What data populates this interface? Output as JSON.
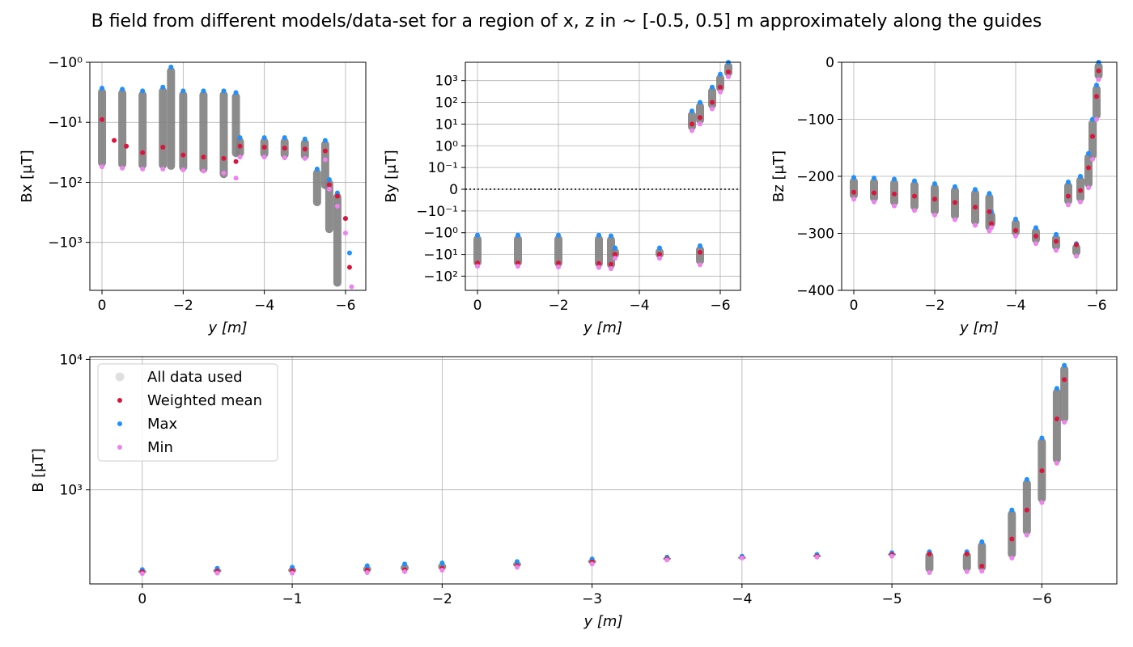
{
  "figure": {
    "suptitle": "B field from different models/data-set for a region of x, z in ~ [-0.5, 0.5] m approximately along the guides"
  },
  "legend": {
    "entries": [
      {
        "label": "All data used",
        "color": "#808080"
      },
      {
        "label": "Weighted mean",
        "color": "#dc143c"
      },
      {
        "label": "Max",
        "color": "#1e90ff"
      },
      {
        "label": "Min",
        "color": "#ee82ee"
      }
    ]
  },
  "colors": {
    "all": "#808080",
    "mean": "#dc143c",
    "max": "#1e90ff",
    "min": "#ee82ee",
    "grid": "#b0b0b0"
  },
  "chart_data": [
    {
      "id": "bx",
      "type": "scatter",
      "xlabel": "y [m]",
      "ylabel": "Bx [μT]",
      "xlim": [
        0.3,
        -6.5
      ],
      "yscale": "symlog-negative",
      "ylim": [
        -6300,
        -1
      ],
      "xticks": [
        0,
        -2,
        -4,
        -6
      ],
      "xtick_labels": [
        "0",
        "−2",
        "−4",
        "−6"
      ],
      "yticks": [
        -1,
        -10,
        -100,
        -1000
      ],
      "ytick_labels": [
        "−10⁰",
        "−10¹",
        "−10²",
        "−10³"
      ],
      "grid": true,
      "series": [
        {
          "name": "Max",
          "x": [
            0,
            -0.5,
            -1.0,
            -1.5,
            -1.7,
            -2.0,
            -2.5,
            -3.0,
            -3.3,
            -3.4,
            -4.0,
            -4.5,
            -5.0,
            -5.5,
            -5.3,
            -5.6,
            -5.8,
            -6.0,
            -6.1
          ],
          "y": [
            -2.7,
            -2.8,
            -3.0,
            -2.6,
            -1.2,
            -3.0,
            -3.0,
            -3.0,
            -3.2,
            -18,
            -18,
            -18,
            -19,
            -20,
            -60,
            -90,
            -150,
            -400,
            -1500
          ]
        },
        {
          "name": "Weighted mean",
          "x": [
            0,
            -0.3,
            -0.6,
            -1.0,
            -1.5,
            -2.0,
            -2.5,
            -3.0,
            -3.3,
            -3.4,
            -4.0,
            -4.5,
            -5.0,
            -5.5,
            -5.6,
            -5.8,
            -6.0,
            -6.1
          ],
          "y": [
            -9,
            -20,
            -25,
            -32,
            -26,
            -35,
            -38,
            -40,
            -45,
            -25,
            -26,
            -27,
            -28,
            -30,
            -110,
            -170,
            -400,
            -2600
          ]
        },
        {
          "name": "Min",
          "x": [
            0,
            -0.5,
            -1.0,
            -1.5,
            -2.0,
            -2.5,
            -3.0,
            -3.3,
            -3.4,
            -4.0,
            -4.5,
            -5.0,
            -5.5,
            -5.6,
            -5.8,
            -6.0,
            -6.15
          ],
          "y": [
            -55,
            -58,
            -60,
            -60,
            -62,
            -65,
            -70,
            -85,
            -38,
            -38,
            -39,
            -40,
            -42,
            -130,
            -250,
            -700,
            -5500
          ]
        }
      ]
    },
    {
      "id": "by",
      "type": "scatter",
      "xlabel": "y [m]",
      "ylabel": "By [μT]",
      "xlim": [
        0.3,
        -6.5
      ],
      "yscale": "symlog",
      "ylim": [
        -450,
        7000
      ],
      "xticks": [
        0,
        -2,
        -4,
        -6
      ],
      "xtick_labels": [
        "0",
        "−2",
        "−4",
        "−6"
      ],
      "yticks": [
        1000,
        100,
        10,
        1,
        0.1,
        0,
        -0.1,
        -1,
        -10,
        -100
      ],
      "ytick_labels": [
        "10³",
        "10²",
        "10¹",
        "10⁰",
        "10⁻¹",
        "0",
        "−10⁻¹",
        "−10⁰",
        "−10¹",
        "−10²"
      ],
      "grid": true,
      "hline": 0,
      "series": [
        {
          "name": "Max",
          "x": [
            0,
            -1.0,
            -2.0,
            -3.0,
            -3.3,
            -3.4,
            -4.5,
            -5.5,
            -5.3,
            -5.5,
            -5.8,
            -6.0,
            -6.2
          ],
          "y": [
            -1.3,
            -1.3,
            -1.3,
            -1.3,
            -1.4,
            -5,
            -5,
            -4,
            40,
            100,
            500,
            2000,
            7000
          ]
        },
        {
          "name": "Weighted mean",
          "x": [
            0,
            -1.0,
            -2.0,
            -3.0,
            -3.3,
            -3.4,
            -4.5,
            -5.5,
            -5.3,
            -5.5,
            -5.8,
            -6.0,
            -6.2
          ],
          "y": [
            -25,
            -25,
            -25,
            -26,
            -28,
            -10,
            -10,
            -8,
            10,
            20,
            100,
            500,
            2500
          ]
        },
        {
          "name": "Min",
          "x": [
            0,
            -1.0,
            -2.0,
            -3.0,
            -3.3,
            -3.4,
            -4.5,
            -5.5,
            -5.3,
            -5.5,
            -5.8,
            -6.0,
            -6.2
          ],
          "y": [
            -35,
            -35,
            -38,
            -40,
            -45,
            -15,
            -15,
            -30,
            5,
            10,
            50,
            300,
            1500
          ]
        }
      ]
    },
    {
      "id": "bz",
      "type": "scatter",
      "xlabel": "y [m]",
      "ylabel": "Bz [μT]",
      "xlim": [
        0.3,
        -6.5
      ],
      "ylim": [
        -400,
        0
      ],
      "xticks": [
        0,
        -2,
        -4,
        -6
      ],
      "xtick_labels": [
        "0",
        "−2",
        "−4",
        "−6"
      ],
      "yticks": [
        0,
        -100,
        -200,
        -300,
        -400
      ],
      "ytick_labels": [
        "0",
        "−100",
        "−200",
        "−300",
        "−400"
      ],
      "grid": true,
      "series": [
        {
          "name": "Max",
          "x": [
            0,
            -0.5,
            -1.0,
            -1.5,
            -2.0,
            -2.5,
            -3.0,
            -3.35,
            -3.4,
            -4.0,
            -4.5,
            -5.0,
            -5.5,
            -5.3,
            -5.6,
            -5.8,
            -5.9,
            -6.0,
            -6.05
          ],
          "y": [
            -202,
            -203,
            -205,
            -208,
            -213,
            -218,
            -223,
            -230,
            -262,
            -275,
            -290,
            -302,
            -318,
            -210,
            -200,
            -160,
            -100,
            -40,
            0
          ]
        },
        {
          "name": "Weighted mean",
          "x": [
            0,
            -0.5,
            -1.0,
            -1.5,
            -2.0,
            -2.5,
            -3.0,
            -3.35,
            -3.4,
            -4.0,
            -4.5,
            -5.0,
            -5.5,
            -5.3,
            -5.6,
            -5.8,
            -5.9,
            -6.0,
            -6.05
          ],
          "y": [
            -228,
            -229,
            -231,
            -235,
            -240,
            -246,
            -254,
            -262,
            -283,
            -295,
            -305,
            -314,
            -320,
            -235,
            -225,
            -185,
            -130,
            -60,
            -15
          ]
        },
        {
          "name": "Min",
          "x": [
            0,
            -0.5,
            -1.0,
            -1.5,
            -2.0,
            -2.5,
            -3.0,
            -3.35,
            -3.4,
            -4.0,
            -4.5,
            -5.0,
            -5.5,
            -5.3,
            -5.6,
            -5.8,
            -5.9,
            -6.0,
            -6.05
          ],
          "y": [
            -240,
            -245,
            -252,
            -260,
            -268,
            -276,
            -286,
            -296,
            -290,
            -305,
            -318,
            -330,
            -340,
            -250,
            -245,
            -220,
            -170,
            -100,
            -30
          ]
        }
      ]
    },
    {
      "id": "b",
      "type": "scatter",
      "xlabel": "y [m]",
      "ylabel": "B [μT]",
      "xlim": [
        0.35,
        -6.5
      ],
      "yscale": "log",
      "ylim": [
        190,
        10500
      ],
      "xticks": [
        0,
        -1,
        -2,
        -3,
        -4,
        -5,
        -6
      ],
      "xtick_labels": [
        "0",
        "−1",
        "−2",
        "−3",
        "−4",
        "−5",
        "−6"
      ],
      "yticks": [
        1000,
        10000
      ],
      "ytick_labels": [
        "10³",
        "10⁴"
      ],
      "grid": true,
      "legend_loc": "upper left",
      "series": [
        {
          "name": "Max",
          "x": [
            0,
            -0.5,
            -1.0,
            -1.5,
            -1.75,
            -2.0,
            -2.5,
            -3.0,
            -3.5,
            -4.0,
            -4.5,
            -5.0,
            -5.25,
            -5.5,
            -5.6,
            -5.8,
            -5.9,
            -6.0,
            -6.1,
            -6.15
          ],
          "y": [
            245,
            250,
            255,
            262,
            270,
            275,
            282,
            295,
            305,
            310,
            320,
            330,
            335,
            335,
            400,
            700,
            1200,
            2500,
            6000,
            9000
          ]
        },
        {
          "name": "Weighted mean",
          "x": [
            0,
            -0.5,
            -1.0,
            -1.5,
            -1.75,
            -2.0,
            -2.5,
            -3.0,
            -3.5,
            -4.0,
            -4.5,
            -5.0,
            -5.25,
            -5.5,
            -5.6,
            -5.8,
            -5.9,
            -6.0,
            -6.1,
            -6.15
          ],
          "y": [
            235,
            238,
            240,
            242,
            244,
            250,
            262,
            280,
            295,
            302,
            310,
            318,
            322,
            322,
            260,
            420,
            700,
            1400,
            3500,
            7000
          ]
        },
        {
          "name": "Min",
          "x": [
            0,
            -0.5,
            -1.0,
            -1.5,
            -1.75,
            -2.0,
            -2.5,
            -3.0,
            -3.5,
            -4.0,
            -4.5,
            -5.0,
            -5.25,
            -5.5,
            -5.6,
            -5.8,
            -5.9,
            -6.0,
            -6.1,
            -6.15
          ],
          "y": [
            228,
            230,
            230,
            232,
            236,
            242,
            255,
            270,
            290,
            300,
            305,
            310,
            232,
            236,
            238,
            300,
            450,
            800,
            1600,
            3300
          ]
        }
      ]
    }
  ]
}
